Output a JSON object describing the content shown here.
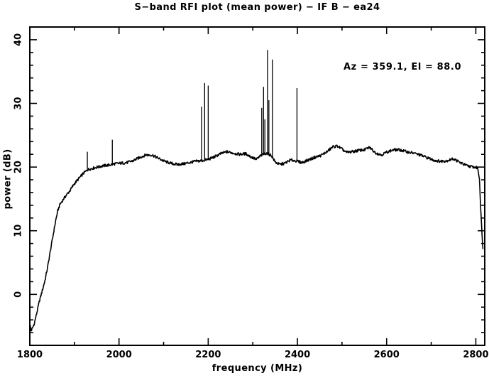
{
  "title": "S−band RFI plot (mean power) − IF B − ea24",
  "annotation": "Az = 359.1, El = 88.0",
  "axes": {
    "xlabel": "frequency (MHz)",
    "ylabel": "power (dB)"
  },
  "colors": {
    "background": "#ffffff",
    "foreground": "#000000"
  },
  "chart_data": {
    "type": "line",
    "title": "S−band RFI plot (mean power) − IF B − ea24",
    "xlabel": "frequency (MHz)",
    "ylabel": "power (dB)",
    "xlim": [
      1800,
      2820
    ],
    "ylim": [
      -8,
      42
    ],
    "x_major_ticks": [
      1800,
      2000,
      2200,
      2400,
      2600,
      2800
    ],
    "x_minor_step": 100,
    "y_major_ticks": [
      0,
      10,
      20,
      30,
      40
    ],
    "y_minor_step": 2,
    "grid": false,
    "legend": "none",
    "line_color": "#000000",
    "noise_amplitude_db": 0.22,
    "annotation": {
      "text": "Az = 359.1, El = 88.0"
    },
    "series": [
      {
        "name": "mean power",
        "anchors": [
          [
            1800,
            -4.6
          ],
          [
            1803,
            -5.7
          ],
          [
            1806,
            -5.3
          ],
          [
            1810,
            -4.6
          ],
          [
            1816,
            -2.8
          ],
          [
            1822,
            -0.9
          ],
          [
            1828,
            0.6
          ],
          [
            1834,
            2.2
          ],
          [
            1840,
            4.3
          ],
          [
            1846,
            6.8
          ],
          [
            1852,
            9.2
          ],
          [
            1858,
            11.6
          ],
          [
            1863,
            13.2
          ],
          [
            1868,
            14.2
          ],
          [
            1874,
            14.8
          ],
          [
            1882,
            15.6
          ],
          [
            1890,
            16.3
          ],
          [
            1900,
            17.4
          ],
          [
            1910,
            18.2
          ],
          [
            1920,
            19.0
          ],
          [
            1930,
            19.6
          ],
          [
            1940,
            19.8
          ],
          [
            1952,
            20.0
          ],
          [
            1964,
            20.2
          ],
          [
            1976,
            20.3
          ],
          [
            1990,
            20.5
          ],
          [
            2004,
            20.6
          ],
          [
            2018,
            20.7
          ],
          [
            2032,
            21.0
          ],
          [
            2046,
            21.5
          ],
          [
            2060,
            21.9
          ],
          [
            2074,
            21.9
          ],
          [
            2088,
            21.4
          ],
          [
            2102,
            20.9
          ],
          [
            2116,
            20.6
          ],
          [
            2130,
            20.4
          ],
          [
            2144,
            20.5
          ],
          [
            2158,
            20.7
          ],
          [
            2172,
            20.9
          ],
          [
            2186,
            21.0
          ],
          [
            2200,
            21.2
          ],
          [
            2214,
            21.6
          ],
          [
            2228,
            22.1
          ],
          [
            2242,
            22.4
          ],
          [
            2256,
            22.2
          ],
          [
            2270,
            22.0
          ],
          [
            2284,
            22.1
          ],
          [
            2296,
            21.6
          ],
          [
            2308,
            21.2
          ],
          [
            2318,
            21.8
          ],
          [
            2330,
            22.2
          ],
          [
            2342,
            21.8
          ],
          [
            2350,
            20.8
          ],
          [
            2360,
            20.4
          ],
          [
            2372,
            20.6
          ],
          [
            2384,
            21.1
          ],
          [
            2396,
            21.0
          ],
          [
            2410,
            20.7
          ],
          [
            2424,
            21.1
          ],
          [
            2438,
            21.5
          ],
          [
            2452,
            21.8
          ],
          [
            2466,
            22.4
          ],
          [
            2480,
            23.2
          ],
          [
            2490,
            23.3
          ],
          [
            2500,
            22.8
          ],
          [
            2510,
            22.3
          ],
          [
            2522,
            22.4
          ],
          [
            2536,
            22.6
          ],
          [
            2550,
            22.7
          ],
          [
            2562,
            23.1
          ],
          [
            2574,
            22.3
          ],
          [
            2588,
            21.9
          ],
          [
            2602,
            22.4
          ],
          [
            2616,
            22.7
          ],
          [
            2630,
            22.7
          ],
          [
            2645,
            22.4
          ],
          [
            2660,
            22.2
          ],
          [
            2675,
            21.9
          ],
          [
            2690,
            21.5
          ],
          [
            2705,
            21.1
          ],
          [
            2720,
            20.9
          ],
          [
            2735,
            21.0
          ],
          [
            2750,
            21.3
          ],
          [
            2765,
            20.7
          ],
          [
            2780,
            20.2
          ],
          [
            2795,
            20.0
          ],
          [
            2804,
            19.9
          ],
          [
            2808,
            18.3
          ],
          [
            2811,
            13.5
          ],
          [
            2814,
            9.2
          ],
          [
            2816,
            7.3
          ]
        ]
      }
    ],
    "spikes": [
      [
        1929,
        22.4
      ],
      [
        1985,
        24.3
      ],
      [
        2185,
        29.5
      ],
      [
        2192,
        33.2
      ],
      [
        2200,
        32.8
      ],
      [
        2320,
        29.3
      ],
      [
        2324,
        32.6
      ],
      [
        2327,
        27.5
      ],
      [
        2333,
        38.4
      ],
      [
        2336,
        30.5
      ],
      [
        2344,
        36.9
      ],
      [
        2399,
        32.4
      ]
    ]
  }
}
